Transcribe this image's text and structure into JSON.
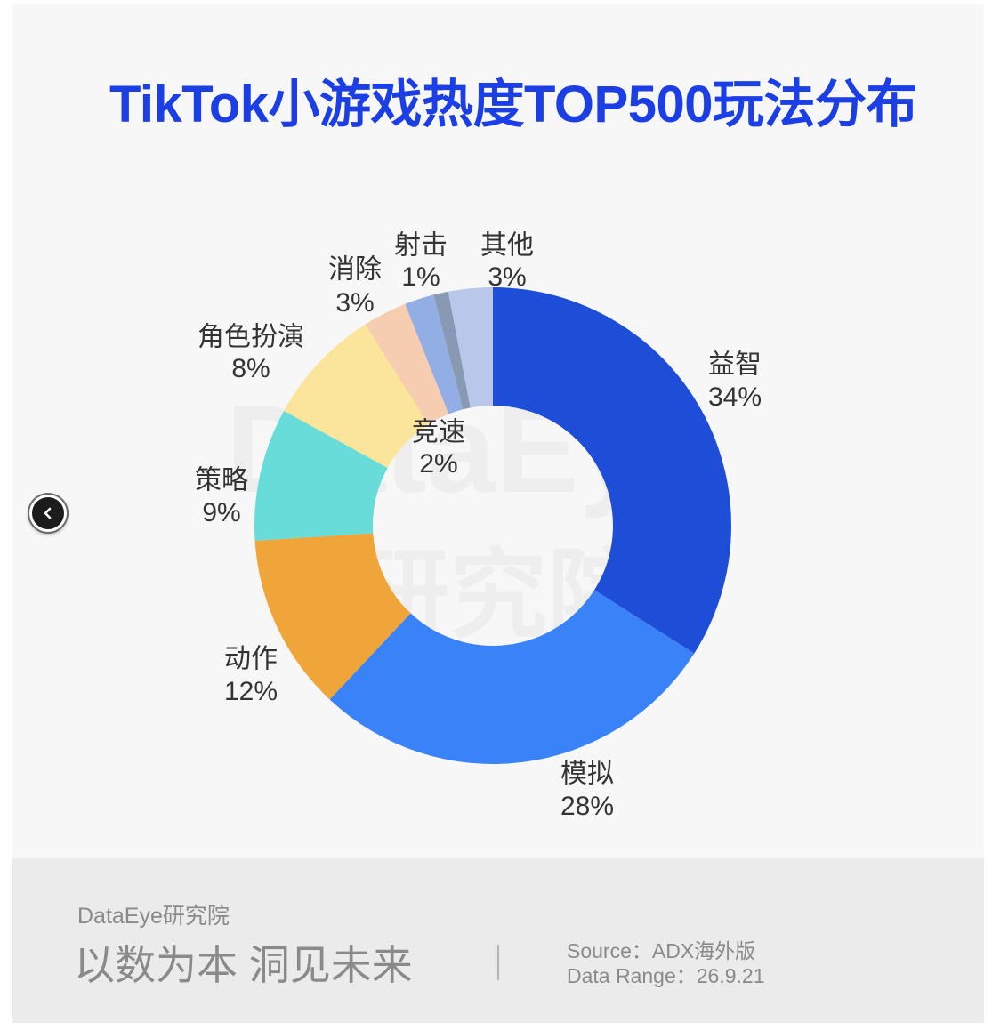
{
  "chart_data": {
    "type": "pie",
    "donut": true,
    "title": "TikTok小游戏热度TOP500玩法分布",
    "categories": [
      "益智",
      "模拟",
      "动作",
      "策略",
      "角色扮演",
      "消除",
      "竞速",
      "射击",
      "其他"
    ],
    "values": [
      34,
      28,
      12,
      9,
      8,
      3,
      2,
      1,
      3
    ],
    "unit": "%",
    "colors": [
      "#1e4dd8",
      "#3a82f7",
      "#f0a53a",
      "#68dcd9",
      "#fbe59b",
      "#f6cdb0",
      "#92aee4",
      "#8899b3",
      "#b9c8ea"
    ]
  },
  "watermark": {
    "line1": "DataEye",
    "line2": "研究院"
  },
  "nav": {
    "prev_icon": "chevron-left-icon"
  },
  "footer": {
    "brand": "DataEye研究院",
    "slogan": "以数为本 洞见未来",
    "source": "Source：ADX海外版",
    "range": "Data Range：26.9.21"
  },
  "theme": {
    "accent": "#1b3fe4"
  }
}
